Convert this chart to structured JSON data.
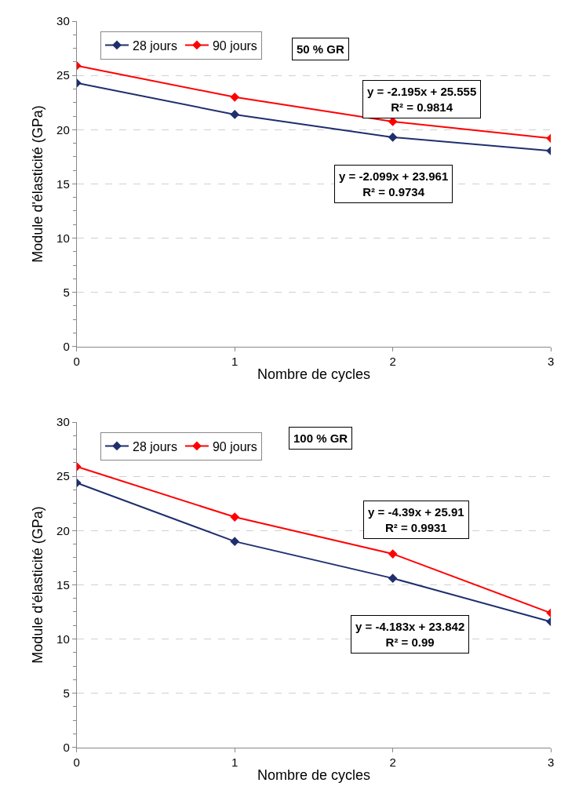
{
  "chart_data": [
    {
      "type": "line",
      "x": [
        0,
        1,
        2,
        3
      ],
      "xlabel": "Nombre de cycles",
      "ylabel": "Module d'élasticité (GPa)",
      "xlim": [
        0,
        3
      ],
      "xticks": [
        0,
        1,
        2,
        3
      ],
      "ylim": [
        0,
        30
      ],
      "yticks": [
        0,
        5,
        10,
        15,
        20,
        25,
        30
      ],
      "grid": "y",
      "legend": "top left",
      "marker": "diamond",
      "line_style": "solid",
      "series": [
        {
          "name": "28 jours",
          "color": "#1f2f6e",
          "values": [
            24.3,
            21.4,
            19.3,
            18.05
          ]
        },
        {
          "name": "90 jours",
          "color": "#ff0000",
          "values": [
            25.9,
            23.0,
            20.75,
            19.2
          ]
        }
      ],
      "annotations": [
        "50 % GR",
        "y = -2.195x + 25.555\nR² = 0.9814",
        "y = -2.099x + 23.961\nR² = 0.9734"
      ]
    },
    {
      "type": "line",
      "x": [
        0,
        1,
        2,
        3
      ],
      "xlabel": "Nombre de cycles",
      "ylabel": "Module d'élasticité (GPa)",
      "xlim": [
        0,
        3
      ],
      "xticks": [
        0,
        1,
        2,
        3
      ],
      "ylim": [
        0,
        30
      ],
      "yticks": [
        0,
        5,
        10,
        15,
        20,
        25,
        30
      ],
      "grid": "y",
      "legend": "top left",
      "marker": "diamond",
      "line_style": "solid",
      "series": [
        {
          "name": "28 jours",
          "color": "#1f2f6e",
          "values": [
            24.4,
            19.0,
            15.6,
            11.6
          ]
        },
        {
          "name": "90 jours",
          "color": "#ff0000",
          "values": [
            25.9,
            21.25,
            17.85,
            12.4
          ]
        }
      ],
      "annotations": [
        "100 % GR",
        "y = -4.39x + 25.91\nR² = 0.9931",
        "y = -4.183x + 23.842\nR² = 0.99"
      ]
    }
  ]
}
